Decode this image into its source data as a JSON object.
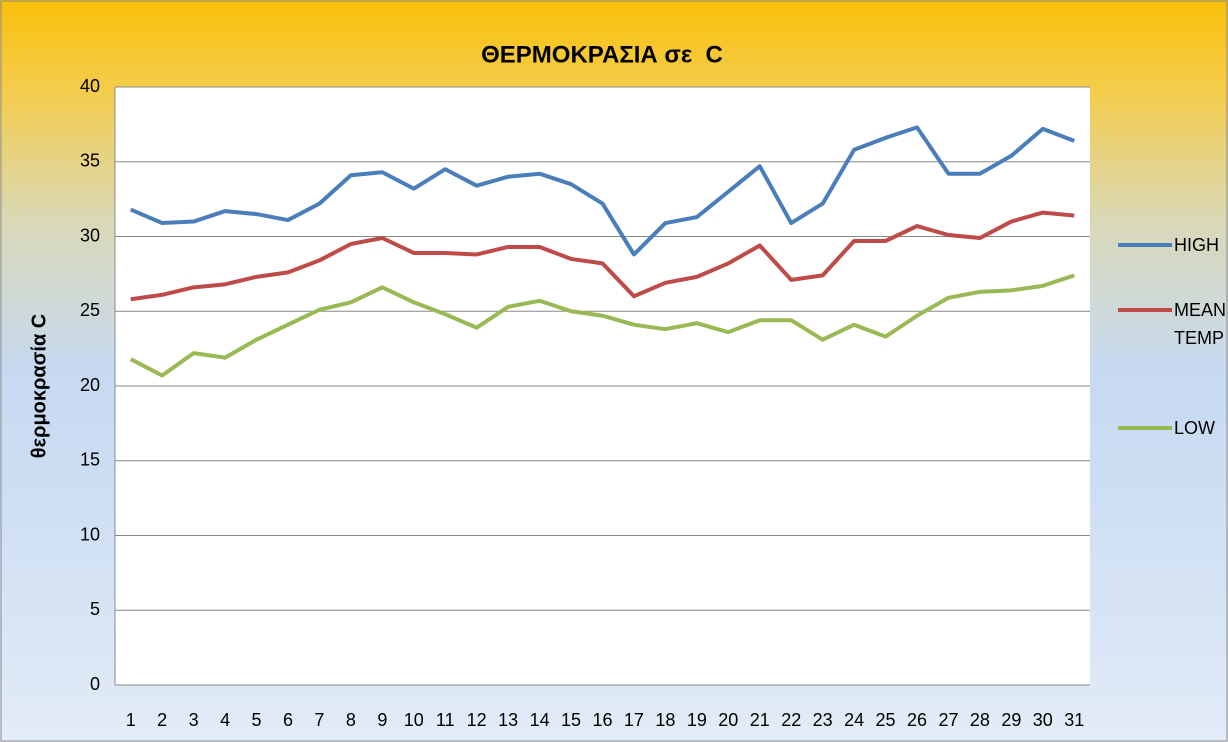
{
  "chart_data": {
    "type": "line",
    "title": "ΘΕΡΜΟΚΡΑΣΙΑ σε  C",
    "y_label": "θερμοκρασία C",
    "categories": [
      "1",
      "2",
      "3",
      "4",
      "5",
      "6",
      "7",
      "8",
      "9",
      "10",
      "11",
      "12",
      "13",
      "14",
      "15",
      "16",
      "17",
      "18",
      "19",
      "20",
      "21",
      "22",
      "23",
      "24",
      "25",
      "26",
      "27",
      "28",
      "29",
      "30",
      "31"
    ],
    "series": [
      {
        "name": "HIGH",
        "color": "#4a7ebb",
        "values": [
          31.8,
          30.9,
          31.0,
          31.7,
          31.5,
          31.1,
          32.2,
          34.1,
          34.3,
          33.2,
          34.5,
          33.4,
          34.0,
          34.2,
          33.5,
          32.2,
          28.8,
          30.9,
          31.3,
          33.0,
          34.7,
          30.9,
          32.2,
          35.8,
          36.6,
          37.3,
          34.2,
          34.2,
          35.4,
          37.2,
          36.4
        ]
      },
      {
        "name": "MEAN TEMP",
        "color": "#be4b48",
        "values": [
          25.8,
          26.1,
          26.6,
          26.8,
          27.3,
          27.6,
          28.4,
          29.5,
          29.9,
          28.9,
          28.9,
          28.8,
          29.3,
          29.3,
          28.5,
          28.2,
          26.0,
          26.9,
          27.3,
          28.2,
          29.4,
          27.1,
          27.4,
          29.7,
          29.7,
          30.7,
          30.1,
          29.9,
          31.0,
          31.6,
          31.4
        ]
      },
      {
        "name": "LOW",
        "color": "#98b954",
        "values": [
          21.8,
          20.7,
          22.2,
          21.9,
          23.1,
          24.1,
          25.1,
          25.6,
          26.6,
          25.6,
          24.8,
          23.9,
          25.3,
          25.7,
          25.0,
          24.7,
          24.1,
          23.8,
          24.2,
          23.6,
          24.4,
          24.4,
          23.1,
          24.1,
          23.3,
          24.7,
          25.9,
          26.3,
          26.4,
          26.7,
          27.4
        ]
      }
    ],
    "ylim": [
      0,
      40
    ],
    "yticks": [
      0,
      5,
      10,
      15,
      20,
      25,
      30,
      35,
      40
    ],
    "grid": true,
    "legend": "right"
  }
}
